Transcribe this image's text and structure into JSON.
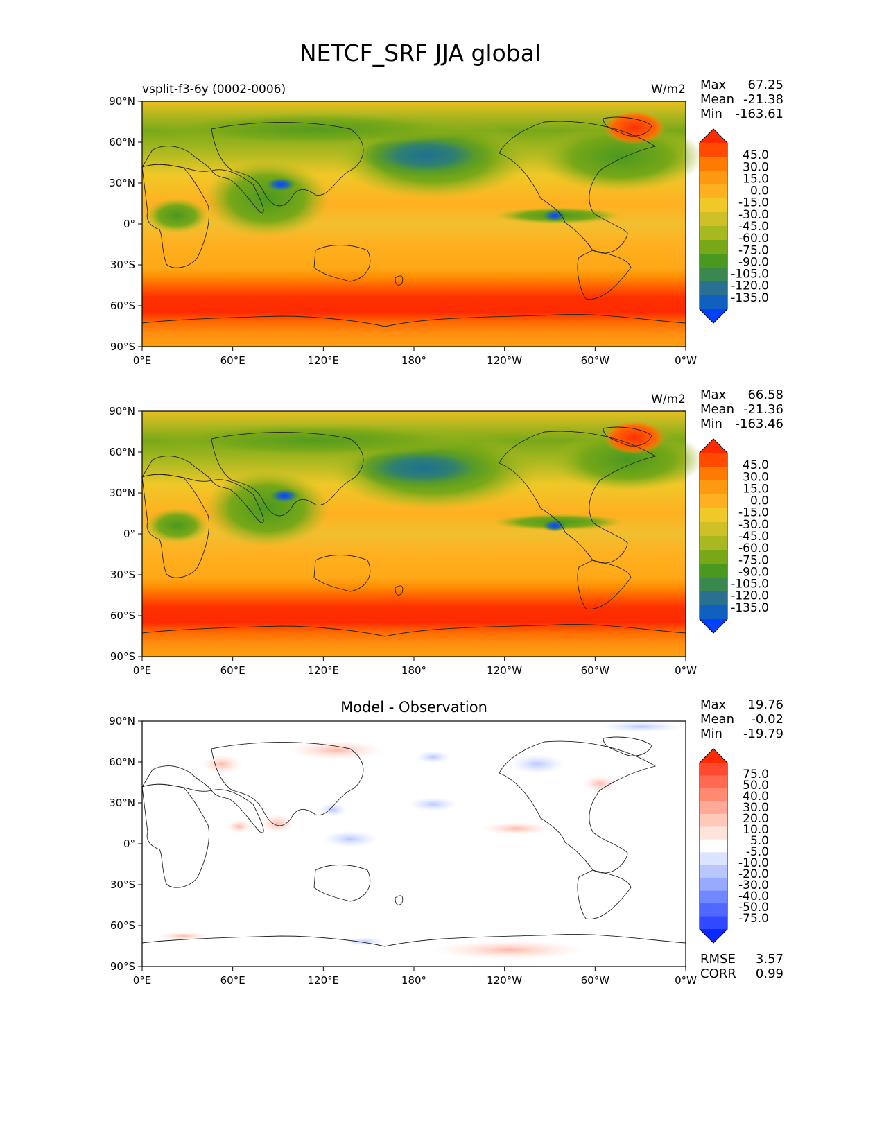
{
  "title": "NETCF_SRF JJA global",
  "lon_ticks": [
    "0°E",
    "60°E",
    "120°E",
    "180°",
    "120°W",
    "60°W",
    "0°W"
  ],
  "lat_ticks": [
    "90°N",
    "60°N",
    "30°N",
    "0°",
    "30°S",
    "60°S",
    "90°S"
  ],
  "panels": [
    {
      "left_title": "vsplit-f3-6y (0002-0006)",
      "right_title": "W/m2",
      "center_title": "",
      "stats": [
        {
          "label": "Max",
          "value": "67.25"
        },
        {
          "label": "Mean",
          "value": "-21.38"
        },
        {
          "label": "Min",
          "value": "-163.61"
        }
      ],
      "colorbar_labels": [
        "45.0",
        "30.0",
        "15.0",
        "0.0",
        "-15.0",
        "-30.0",
        "-45.0",
        "-60.0",
        "-75.0",
        "-90.0",
        "-105.0",
        "-120.0",
        "-135.0"
      ],
      "colorbar_colors": [
        "#ff2a00",
        "#ff4a00",
        "#ff7a00",
        "#ff9a10",
        "#ffb020",
        "#f0c828",
        "#d0c028",
        "#a8b820",
        "#78a818",
        "#4a9820",
        "#3a8850",
        "#2a7090",
        "#1060c0",
        "#0040ff"
      ]
    },
    {
      "left_title": "",
      "right_title": "W/m2",
      "center_title": "",
      "stats": [
        {
          "label": "Max",
          "value": "66.58"
        },
        {
          "label": "Mean",
          "value": "-21.36"
        },
        {
          "label": "Min",
          "value": "-163.46"
        }
      ],
      "colorbar_labels": [
        "45.0",
        "30.0",
        "15.0",
        "0.0",
        "-15.0",
        "-30.0",
        "-45.0",
        "-60.0",
        "-75.0",
        "-90.0",
        "-105.0",
        "-120.0",
        "-135.0"
      ],
      "colorbar_colors": [
        "#ff2a00",
        "#ff4a00",
        "#ff7a00",
        "#ff9a10",
        "#ffb020",
        "#f0c828",
        "#d0c028",
        "#a8b820",
        "#78a818",
        "#4a9820",
        "#3a8850",
        "#2a7090",
        "#1060c0",
        "#0040ff"
      ]
    },
    {
      "left_title": "",
      "right_title": "",
      "center_title": "Model - Observation",
      "stats": [
        {
          "label": "Max",
          "value": "19.76"
        },
        {
          "label": "Mean",
          "value": "-0.02"
        },
        {
          "label": "Min",
          "value": "-19.79"
        }
      ],
      "bottom_stats": [
        {
          "label": "RMSE",
          "value": "3.57"
        },
        {
          "label": "CORR",
          "value": "0.99"
        }
      ],
      "colorbar_labels": [
        "75.0",
        "50.0",
        "40.0",
        "30.0",
        "20.0",
        "10.0",
        "5.0",
        "-5.0",
        "-10.0",
        "-20.0",
        "-30.0",
        "-40.0",
        "-50.0",
        "-75.0"
      ],
      "colorbar_colors": [
        "#ff2a00",
        "#ff4a30",
        "#ff6a50",
        "#ff8a70",
        "#ffaa98",
        "#ffc8b8",
        "#ffe4dc",
        "#ffffff",
        "#dce4ff",
        "#b8c8ff",
        "#98aaff",
        "#7088ff",
        "#5068ff",
        "#3048ff",
        "#0a28ff"
      ]
    }
  ]
}
